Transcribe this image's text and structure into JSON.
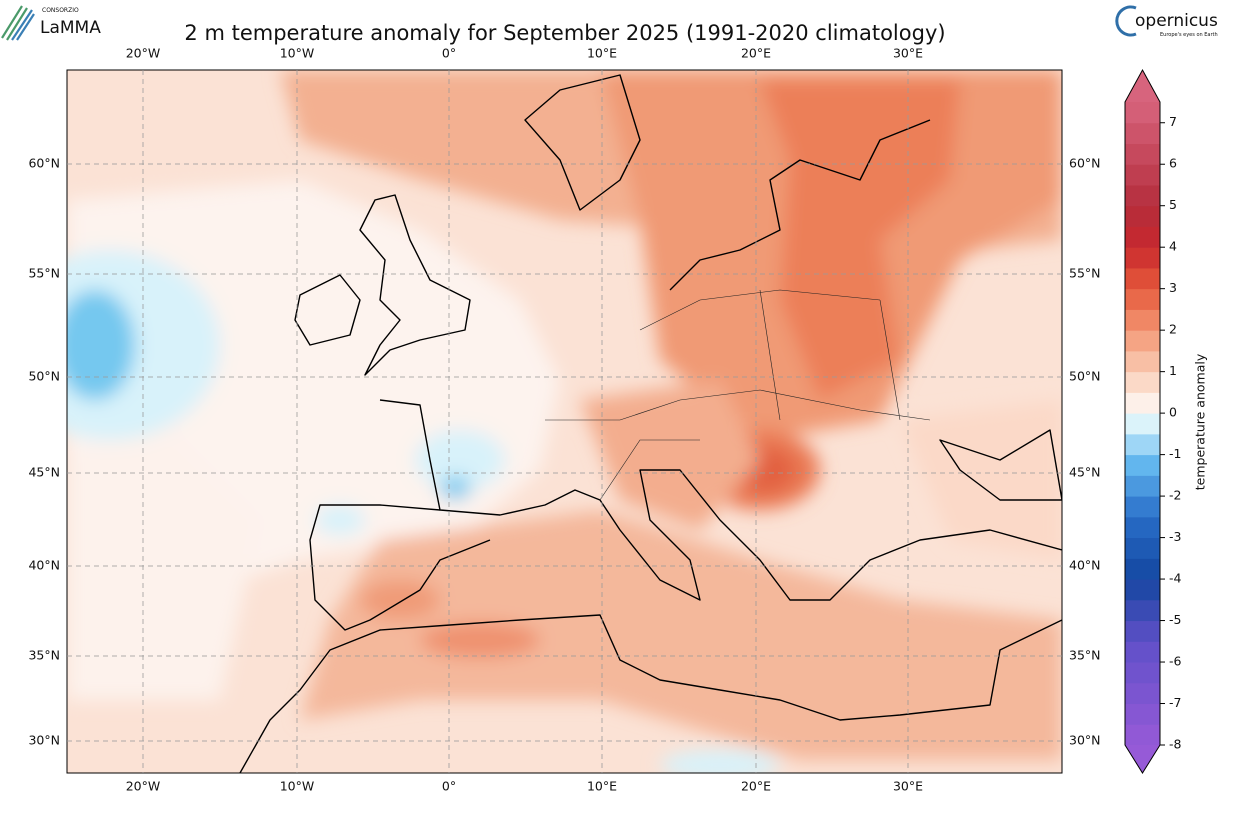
{
  "header": {
    "title": "2 m temperature anomaly for September 2025 (1991-2020 climatology)",
    "logo_left": {
      "small": "CONSORZIO",
      "name": "LaMMA"
    },
    "logo_right": {
      "name": "opernicus",
      "tagline": "Europe's eyes on Earth"
    }
  },
  "map": {
    "lon_labels": [
      "20°W",
      "10°W",
      "0°",
      "10°E",
      "20°E",
      "30°E"
    ],
    "lat_labels": [
      "60°N",
      "55°N",
      "50°N",
      "45°N",
      "40°N",
      "35°N",
      "30°N"
    ]
  },
  "colorbar": {
    "label": "temperature anomaly",
    "range": [
      -8,
      7.5
    ],
    "ticks": [
      7,
      6,
      5,
      4,
      3,
      2,
      1,
      0,
      -1,
      -2,
      -3,
      -4,
      -5,
      -6,
      -7,
      -8
    ]
  }
}
